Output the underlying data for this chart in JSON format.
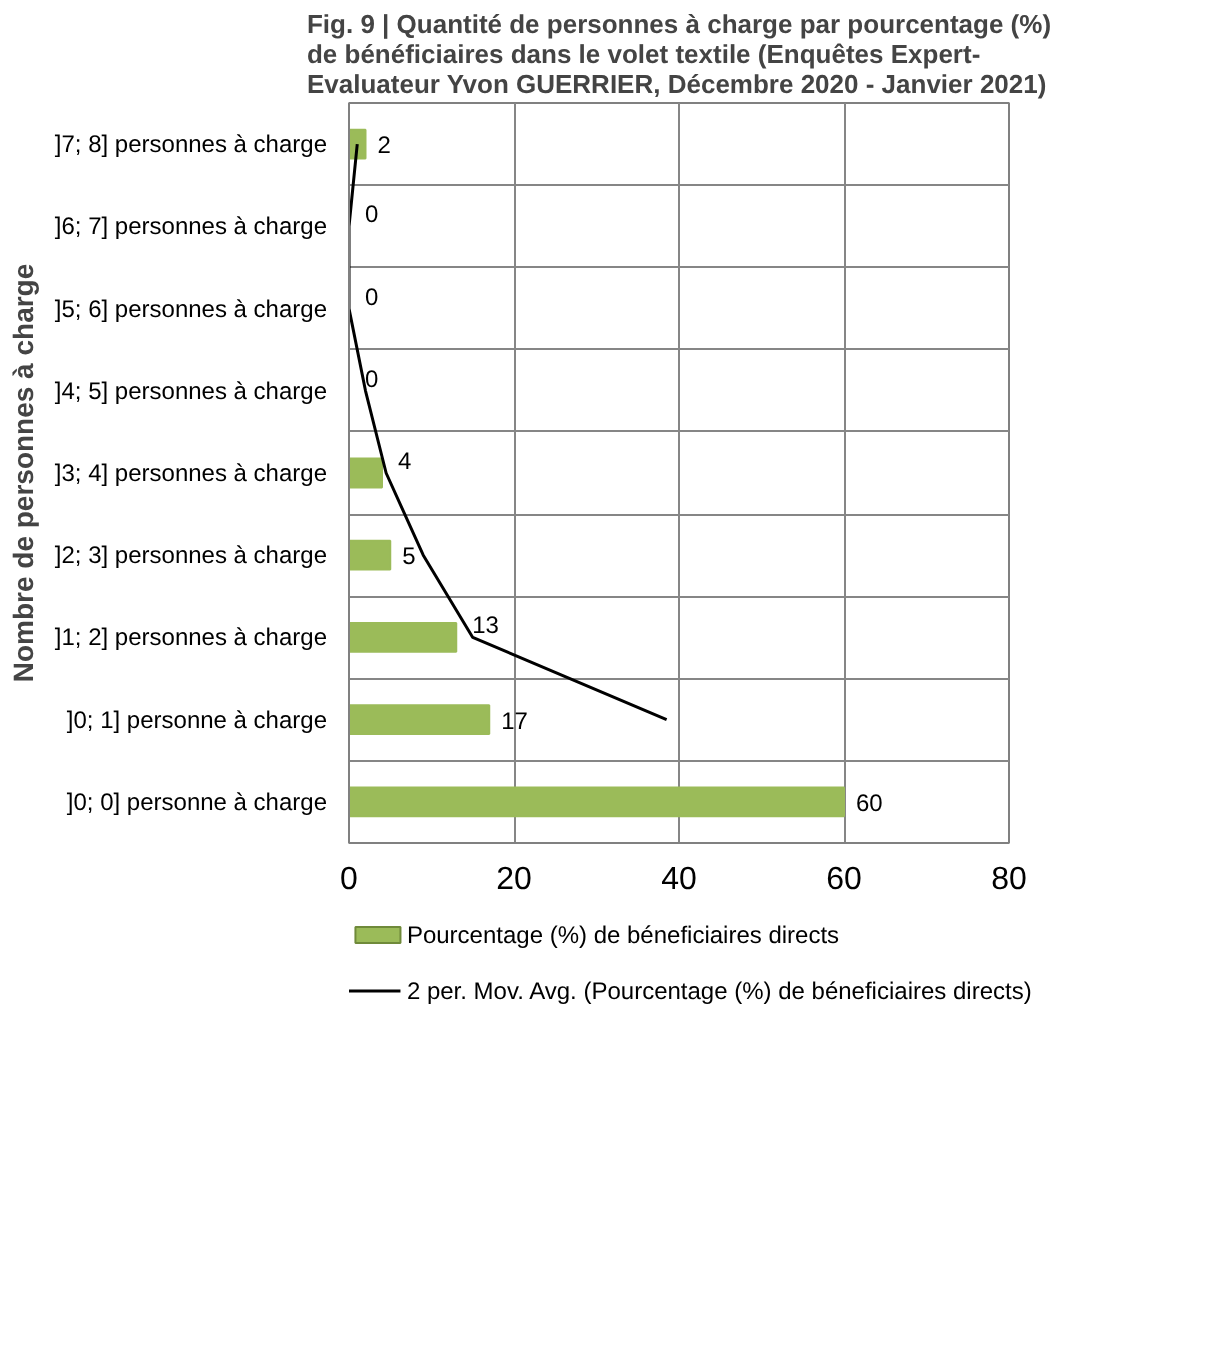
{
  "chart_data": {
    "type": "bar",
    "orientation": "horizontal",
    "title": "Fig. 9 | Quantité de personnes à charge par pourcentage (%)\nde bénéficiaires dans le volet textile (Enquêtes Expert-\nEvaluateur Yvon GUERRIER, Décembre 2020 - Janvier 2021)",
    "ylabel": "Nombre de personnes à charge",
    "categories": [
      "]7; 8] personnes à charge",
      "]6; 7] personnes à charge",
      "]5; 6] personnes à charge",
      "]4; 5] personnes à charge",
      "]3; 4] personnes à charge",
      "]2; 3] personnes à charge",
      "]1; 2] personnes à charge",
      "]0; 1] personne à charge",
      "]0; 0] personne à charge"
    ],
    "series": [
      {
        "name": "Pourcentage (%) de béneficiaires directs",
        "color": "#9bbb59",
        "values": [
          2,
          0,
          0,
          0,
          4,
          5,
          13,
          17,
          60
        ],
        "value_labels": [
          "2",
          "0",
          "0",
          "0",
          "4",
          "5",
          "13",
          "17",
          "60"
        ]
      },
      {
        "type": "line",
        "name": "2 per. Mov. Avg. (Pourcentage (%) de béneficiaires directs)",
        "color": "#000000",
        "values": [
          1,
          0,
          0,
          2,
          4.5,
          9,
          15,
          38.5,
          null
        ]
      }
    ],
    "xlim": [
      0,
      80
    ],
    "xticks": [
      0,
      20,
      40,
      60,
      80
    ],
    "grid": true,
    "legend": "bottom"
  }
}
